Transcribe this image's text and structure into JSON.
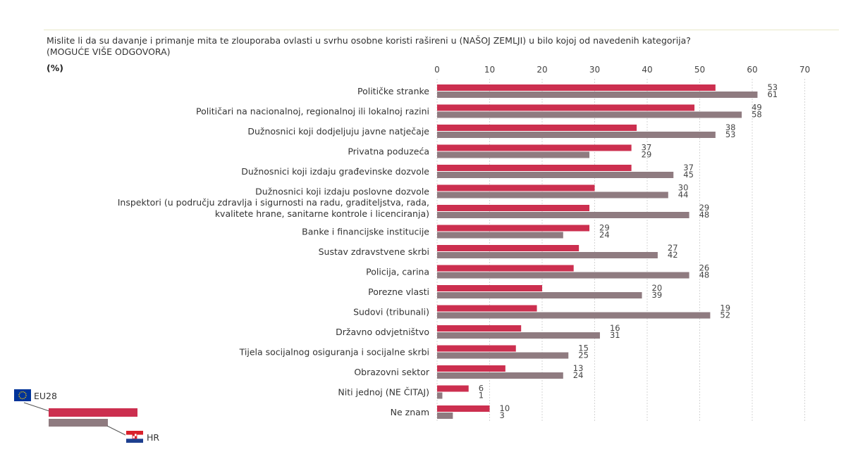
{
  "header": {
    "question": "Mislite li da su davanje i primanje mita te zlouporaba ovlasti u svrhu osobne koristi rašireni u (NAŠOJ ZEMLJI) u bilo kojoj od navedenih kategorija?",
    "note": "(MOGUĆE VIŠE ODGOVORA)",
    "unit": "(%)"
  },
  "legend": {
    "eu_label": "EU28",
    "hr_label": "HR"
  },
  "colors": {
    "eu": "#cc2f4f",
    "hr": "#8f7b80",
    "grid": "#d4d4d4",
    "text": "#333333",
    "flag_eu": "#003399",
    "flag_star": "#ffcc00",
    "flag_red": "#d9202a",
    "flag_blue": "#1d3f8f"
  },
  "chart_data": {
    "type": "bar",
    "orientation": "horizontal",
    "xlim": [
      0,
      70
    ],
    "xticks": [
      0,
      10,
      20,
      30,
      40,
      50,
      60,
      70
    ],
    "grid": true,
    "legend_position": "bottom-left",
    "categories": [
      [
        "Političke stranke"
      ],
      [
        "Političari na nacionalnoj, regionalnoj ili lokalnoj razini"
      ],
      [
        "Dužnosnici koji dodjeljuju javne natječaje"
      ],
      [
        "Privatna poduzeća"
      ],
      [
        "Dužnosnici koji izdaju građevinske dozvole"
      ],
      [
        "Dužnosnici koji izdaju poslovne dozvole"
      ],
      [
        "Inspektori (u području zdravlja i sigurnosti na radu, graditeljstva, rada,",
        "kvalitete hrane, sanitarne kontrole i licenciranja)"
      ],
      [
        "Banke i financijske institucije"
      ],
      [
        "Sustav zdravstvene skrbi"
      ],
      [
        "Policija, carina"
      ],
      [
        "Porezne vlasti"
      ],
      [
        "Sudovi (tribunali)"
      ],
      [
        "Državno odvjetništvo"
      ],
      [
        "Tijela socijalnog osiguranja i socijalne skrbi"
      ],
      [
        "Obrazovni sektor"
      ],
      [
        "Niti jednoj (NE ČITAJ)"
      ],
      [
        "Ne znam"
      ]
    ],
    "series": [
      {
        "name": "EU28",
        "values": [
          53,
          49,
          38,
          37,
          37,
          30,
          29,
          29,
          27,
          26,
          20,
          19,
          16,
          15,
          13,
          6,
          10
        ]
      },
      {
        "name": "HR",
        "values": [
          61,
          58,
          53,
          29,
          45,
          44,
          48,
          24,
          42,
          48,
          39,
          52,
          31,
          25,
          24,
          1,
          3
        ]
      }
    ]
  }
}
